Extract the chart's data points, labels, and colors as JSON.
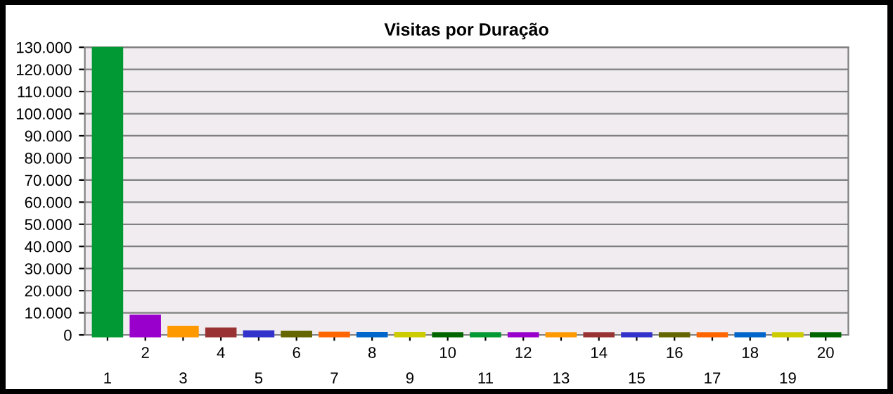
{
  "chart_data": {
    "type": "bar",
    "title": "Visitas por Duração",
    "categories": [
      "1",
      "2",
      "3",
      "4",
      "5",
      "6",
      "7",
      "8",
      "9",
      "10",
      "11",
      "12",
      "13",
      "14",
      "15",
      "16",
      "17",
      "18",
      "19",
      "20"
    ],
    "values": [
      129000,
      8000,
      3000,
      2200,
      1000,
      800,
      300,
      200,
      200,
      100,
      100,
      100,
      100,
      100,
      100,
      100,
      100,
      100,
      100,
      100
    ],
    "colors": [
      "#009933",
      "#9900cc",
      "#ff9900",
      "#993333",
      "#3333cc",
      "#666600",
      "#ff6600",
      "#0066cc",
      "#cccc00",
      "#006600",
      "#009933",
      "#9900cc",
      "#ff9900",
      "#993333",
      "#3333cc",
      "#666600",
      "#ff6600",
      "#0066cc",
      "#cccc00",
      "#006600"
    ],
    "ylim": [
      0,
      130000
    ],
    "yticks": [
      0,
      {
        "value": 10000,
        "label": "10.000"
      },
      {
        "value": 20000,
        "label": "20.000"
      },
      {
        "value": 30000,
        "label": "30.000"
      },
      {
        "value": 40000,
        "label": "40.000"
      },
      {
        "value": 50000,
        "label": "50.000"
      },
      {
        "value": 60000,
        "label": "60.000"
      },
      {
        "value": 70000,
        "label": "70.000"
      },
      {
        "value": 80000,
        "label": "80.000"
      },
      {
        "value": 90000,
        "label": "90.000"
      },
      {
        "value": 100000,
        "label": "100.000"
      },
      {
        "value": 110000,
        "label": "110.000"
      },
      {
        "value": 120000,
        "label": "120.000"
      },
      {
        "value": 130000,
        "label": "130.000"
      }
    ],
    "grid": "y"
  }
}
